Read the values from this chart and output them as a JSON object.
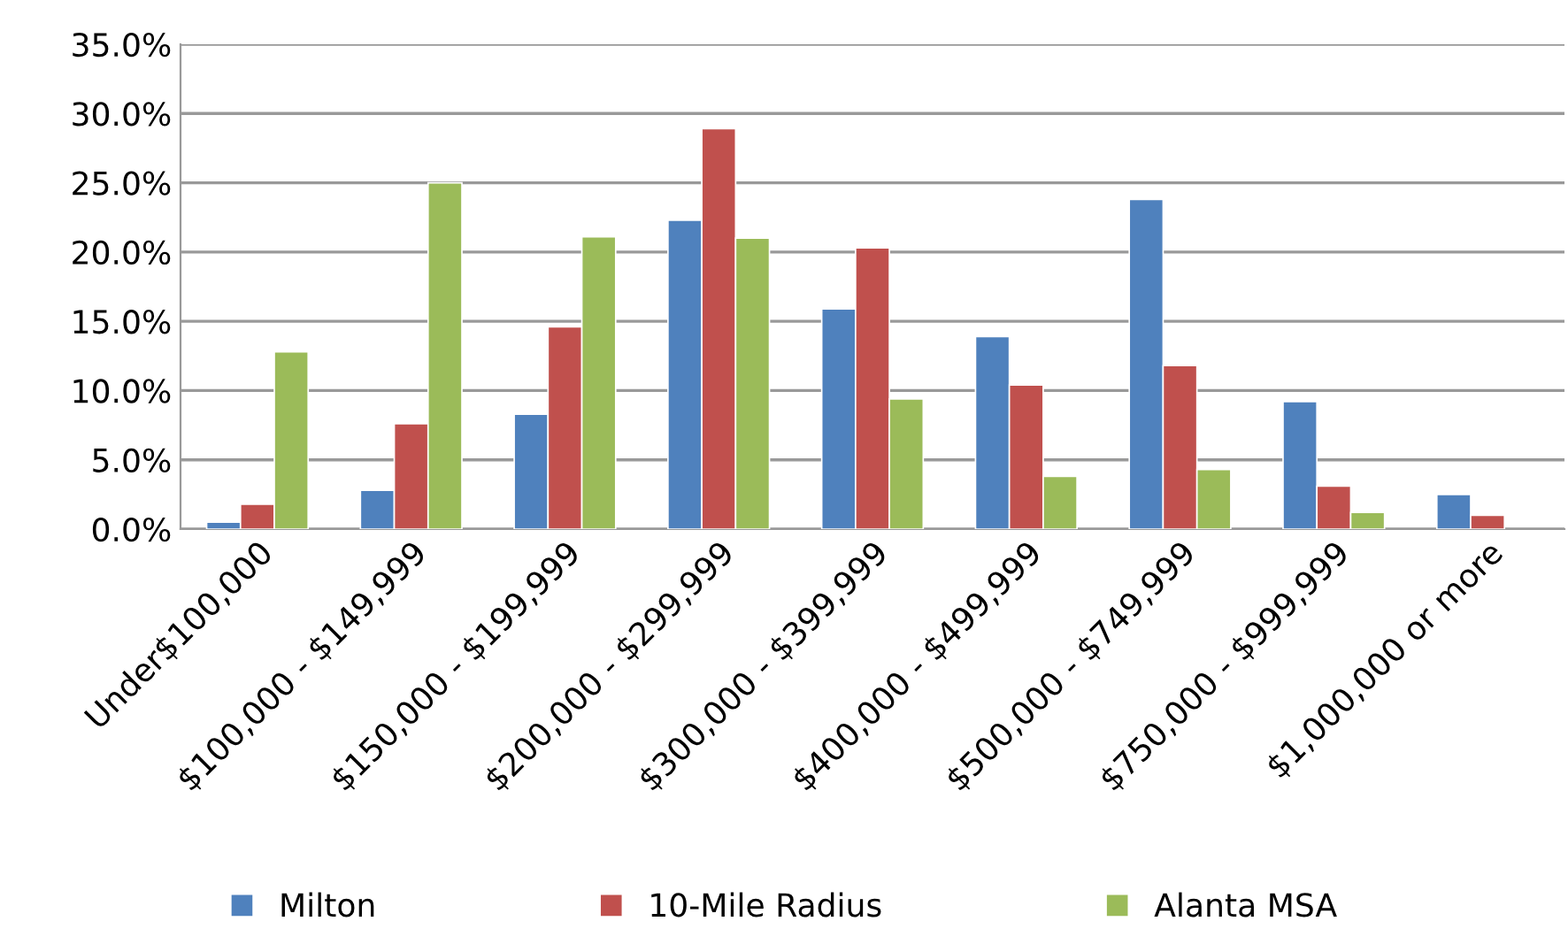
{
  "chart_data": {
    "type": "bar",
    "categories": [
      "Under$100,000",
      "$100,000 - $149,999",
      "$150,000 - $199,999",
      "$200,000 - $299,999",
      "$300,000 - $399,999",
      "$400,000 - $499,999",
      "$500,000 - $749,999",
      "$750,000 - $999,999",
      "$1,000,000 or more"
    ],
    "series": [
      {
        "name": "Milton",
        "color": "#4f81bd",
        "values": [
          0.5,
          2.8,
          8.3,
          22.3,
          15.9,
          13.9,
          23.8,
          9.2,
          2.5
        ]
      },
      {
        "name": "10-Mile Radius",
        "color": "#c0504d",
        "values": [
          1.8,
          7.6,
          14.6,
          28.9,
          20.3,
          10.4,
          11.8,
          3.1,
          1.0
        ]
      },
      {
        "name": "Alanta MSA",
        "color": "#9bbb59",
        "values": [
          12.8,
          25.0,
          21.1,
          21.0,
          9.4,
          3.8,
          4.3,
          1.2,
          null
        ]
      }
    ],
    "ylim": [
      0,
      35
    ],
    "yticks": [
      {
        "value": 0,
        "label": "0.0%"
      },
      {
        "value": 5,
        "label": "5.0%"
      },
      {
        "value": 10,
        "label": "10.0%"
      },
      {
        "value": 15,
        "label": "15.0%"
      },
      {
        "value": 20,
        "label": "20.0%"
      },
      {
        "value": 25,
        "label": "25.0%"
      },
      {
        "value": 30,
        "label": "30.0%"
      },
      {
        "value": 35,
        "label": "35.0%"
      }
    ],
    "grid": "y",
    "legend": "bottom"
  }
}
